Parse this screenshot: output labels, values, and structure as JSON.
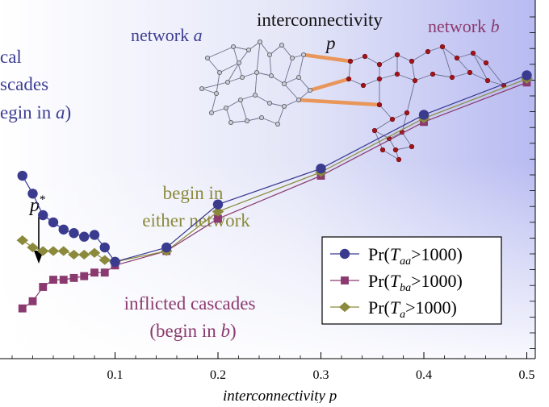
{
  "chart_data": {
    "type": "line",
    "xlabel": "interconnectivity p",
    "xlim": [
      0.0,
      0.505
    ],
    "ylim": [
      0.0,
      1.0
    ],
    "x_ticks": [
      0.1,
      0.2,
      0.3,
      0.4,
      0.5
    ],
    "x_tick_labels": [
      "0.1",
      "0.2",
      "0.3",
      "0.4",
      "0.5"
    ],
    "series": [
      {
        "name": "Pr(Taa>1000)",
        "legend": {
          "base": "Pr(",
          "var": "T",
          "sub": "aa",
          "rest": ">1000)"
        },
        "color": "#3a3a8f",
        "marker": "circle",
        "points": [
          [
            0.01,
            0.51
          ],
          [
            0.02,
            0.46
          ],
          [
            0.03,
            0.4
          ],
          [
            0.04,
            0.38
          ],
          [
            0.05,
            0.36
          ],
          [
            0.06,
            0.35
          ],
          [
            0.07,
            0.34
          ],
          [
            0.08,
            0.345
          ],
          [
            0.09,
            0.31
          ],
          [
            0.1,
            0.27
          ],
          [
            0.15,
            0.31
          ],
          [
            0.2,
            0.43
          ],
          [
            0.3,
            0.53
          ],
          [
            0.4,
            0.68
          ],
          [
            0.5,
            0.79
          ]
        ]
      },
      {
        "name": "Pr(Tba>1000)",
        "legend": {
          "base": "Pr(",
          "var": "T",
          "sub": "ba",
          "rest": ">1000)"
        },
        "color": "#8a3a6e",
        "marker": "square",
        "points": [
          [
            0.01,
            0.14
          ],
          [
            0.02,
            0.16
          ],
          [
            0.03,
            0.2
          ],
          [
            0.04,
            0.22
          ],
          [
            0.05,
            0.22
          ],
          [
            0.06,
            0.225
          ],
          [
            0.07,
            0.23
          ],
          [
            0.08,
            0.24
          ],
          [
            0.09,
            0.24
          ],
          [
            0.1,
            0.26
          ],
          [
            0.15,
            0.3
          ],
          [
            0.2,
            0.39
          ],
          [
            0.3,
            0.51
          ],
          [
            0.4,
            0.66
          ],
          [
            0.5,
            0.77
          ]
        ]
      },
      {
        "name": "Pr(Ta>1000)",
        "legend": {
          "base": "Pr(",
          "var": "T",
          "sub": "a",
          "rest": ">1000)"
        },
        "color": "#8b8a3c",
        "marker": "diamond",
        "points": [
          [
            0.01,
            0.33
          ],
          [
            0.02,
            0.31
          ],
          [
            0.03,
            0.3
          ],
          [
            0.04,
            0.3
          ],
          [
            0.05,
            0.3
          ],
          [
            0.06,
            0.29
          ],
          [
            0.07,
            0.29
          ],
          [
            0.08,
            0.295
          ],
          [
            0.09,
            0.275
          ],
          [
            0.1,
            0.27
          ],
          [
            0.15,
            0.3
          ],
          [
            0.2,
            0.41
          ],
          [
            0.3,
            0.52
          ],
          [
            0.4,
            0.67
          ],
          [
            0.5,
            0.78
          ]
        ]
      }
    ],
    "annotations": {
      "local_cascades": [
        "cal",
        "scades",
        "egin in a)"
      ],
      "either_network": [
        "begin in",
        "either network"
      ],
      "inflicted_cascades": [
        "inflicted cascades",
        "(begin in b)"
      ],
      "p_star": {
        "label": "p",
        "sup": "*",
        "x": 0.075
      },
      "inset": {
        "network_a": "network a",
        "network_b": "network b",
        "interconnectivity": "interconnectivity",
        "p": "p"
      }
    },
    "grid": false,
    "legend_position": "right-middle"
  }
}
